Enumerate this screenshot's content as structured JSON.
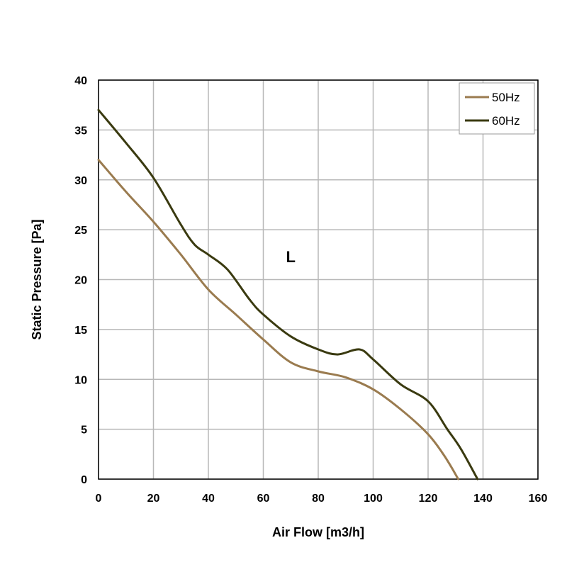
{
  "chart_data": {
    "type": "line",
    "title": "",
    "xlabel": "Air Flow [m3/h]",
    "ylabel": "Static Pressure [Pa]",
    "xlim": [
      0,
      160
    ],
    "ylim": [
      0,
      40
    ],
    "xticks": [
      0,
      20,
      40,
      60,
      80,
      100,
      120,
      140,
      160
    ],
    "yticks": [
      0,
      5,
      10,
      15,
      20,
      25,
      30,
      35,
      40
    ],
    "grid": true,
    "legend_position": "top-right",
    "annotations": [
      {
        "text": "L",
        "x": 70,
        "y": 22.3
      }
    ],
    "series": [
      {
        "name": "50Hz",
        "color": "#9a7b4f",
        "points": [
          [
            0,
            32
          ],
          [
            10,
            28.8
          ],
          [
            20,
            25.8
          ],
          [
            30,
            22.5
          ],
          [
            40,
            19
          ],
          [
            50,
            16.5
          ],
          [
            60,
            14
          ],
          [
            70,
            11.7
          ],
          [
            80,
            10.8
          ],
          [
            90,
            10.2
          ],
          [
            100,
            9
          ],
          [
            110,
            7
          ],
          [
            120,
            4.5
          ],
          [
            126,
            2.3
          ],
          [
            131,
            0
          ]
        ]
      },
      {
        "name": "60Hz",
        "color": "#3a3a10",
        "points": [
          [
            0,
            37
          ],
          [
            10,
            33.7
          ],
          [
            20,
            30.2
          ],
          [
            30,
            25.5
          ],
          [
            35,
            23.5
          ],
          [
            40,
            22.5
          ],
          [
            47,
            21
          ],
          [
            55,
            18
          ],
          [
            60,
            16.5
          ],
          [
            70,
            14.3
          ],
          [
            80,
            13
          ],
          [
            87,
            12.5
          ],
          [
            95,
            13
          ],
          [
            100,
            12
          ],
          [
            110,
            9.5
          ],
          [
            120,
            7.8
          ],
          [
            127,
            5
          ],
          [
            132,
            3
          ],
          [
            138,
            0
          ]
        ]
      }
    ]
  }
}
